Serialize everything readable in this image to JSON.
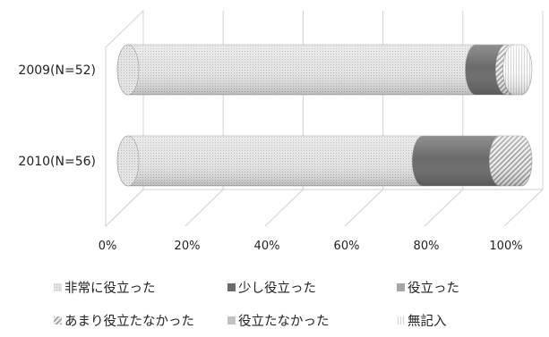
{
  "chart_data": {
    "type": "bar",
    "orientation": "horizontal",
    "stacked": true,
    "percent": true,
    "categories": [
      "2009(N=52)",
      "2010(N=56)"
    ],
    "series": [
      {
        "name": "非常に役立った",
        "values": [
          88.5,
          75.0
        ],
        "color": "#d9d9d9"
      },
      {
        "name": "少し役立った",
        "values": [
          7.7,
          19.6
        ],
        "color": "#6b6b6b"
      },
      {
        "name": "役立った",
        "values": [
          0,
          0
        ],
        "color": "#a6a6a6"
      },
      {
        "name": "あまり役立たなかった",
        "values": [
          1.9,
          5.4
        ],
        "color": "#bdbdbd"
      },
      {
        "name": "役立たなかった",
        "values": [
          0,
          0
        ],
        "color": "#c8c8c8"
      },
      {
        "name": "無記入",
        "values": [
          1.9,
          0
        ],
        "color": "#f2f2f2"
      }
    ],
    "x_ticks": [
      "0%",
      "20%",
      "40%",
      "60%",
      "80%",
      "100%"
    ],
    "xlim": [
      0,
      100
    ],
    "grid": true,
    "legend_position": "bottom"
  }
}
